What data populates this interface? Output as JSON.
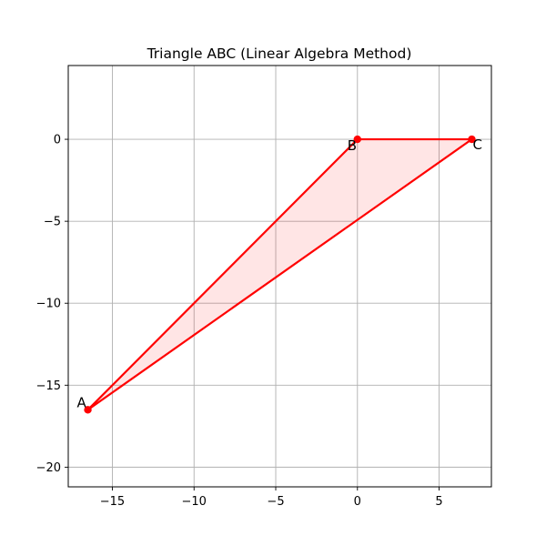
{
  "chart_data": {
    "type": "line",
    "title": "Triangle ABC (Linear Algebra Method)",
    "xlabel": "",
    "ylabel": "",
    "xlim": [
      -17.7,
      8.2
    ],
    "ylim": [
      -21.2,
      4.5
    ],
    "xticks": [
      -15,
      -10,
      -5,
      0,
      5
    ],
    "yticks": [
      0,
      -5,
      -10,
      -15,
      -20
    ],
    "grid": true,
    "color": "#ff0000",
    "fill_color": "#ff0000",
    "fill_alpha": 0.1,
    "points": [
      {
        "label": "A",
        "x": -16.5,
        "y": -16.5
      },
      {
        "label": "B",
        "x": 0,
        "y": 0
      },
      {
        "label": "C",
        "x": 7,
        "y": 0
      }
    ]
  }
}
